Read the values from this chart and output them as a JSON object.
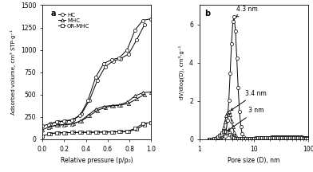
{
  "panel_a": {
    "title": "a",
    "xlabel": "Relative pressure (p/p₀)",
    "ylabel": "Adsorbed volume, cm³ STP·g⁻¹",
    "ylim": [
      0,
      1500
    ],
    "yticks": [
      0,
      250,
      500,
      750,
      1000,
      1250,
      1500
    ],
    "xlim": [
      0.0,
      1.0
    ],
    "xticks": [
      0.0,
      0.2,
      0.4,
      0.6,
      0.8,
      1.0
    ],
    "legend": [
      "HC",
      "MHC",
      "OR-MHC"
    ],
    "markers": [
      "o",
      "^",
      "s"
    ]
  },
  "panel_b": {
    "title": "b",
    "xlabel": "Pore size (D), nm",
    "ylabel": "dV/dlog(D), cm³·g⁻¹",
    "ylim": [
      0,
      7
    ],
    "yticks": [
      0,
      2,
      4,
      6
    ],
    "xlim_log": [
      1,
      100
    ]
  },
  "markersize": 3.0,
  "linewidth": 0.7
}
